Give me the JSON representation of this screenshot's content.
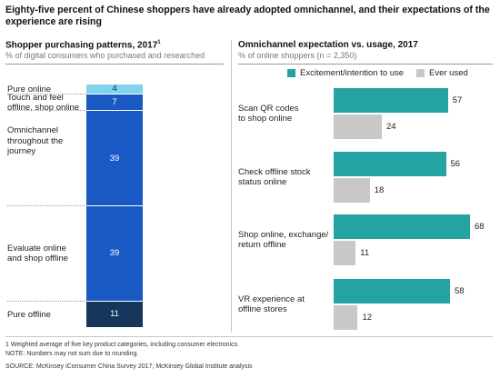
{
  "title": "Eighty-five percent of Chinese shoppers have already adopted omnichannel, and their expectations of the experience are rising",
  "left_panel": {
    "title": "Shopper purchasing patterns, 2017",
    "title_sup": "1",
    "subtitle": "% of digital consumers who purchased and researched"
  },
  "right_panel": {
    "title": "Omnichannel expectation vs. usage, 2017",
    "subtitle": "% of online shoppers (n = 2,350)"
  },
  "footnotes": {
    "note1": "1  Weighted average of five key product categories, including consumer electronics.",
    "note2": "NOTE: Numbers may not sum due to rounding.",
    "source": "SOURCE:  McKinsey iConsumer China Survey 2017; McKinsey Global Institute analysis"
  },
  "colors": {
    "pure_online": "#7fd3ec",
    "blue": "#1a59c4",
    "pure_offline": "#16365c",
    "teal": "#25a3a3",
    "gray": "#c8c8c8"
  },
  "chart_data": [
    {
      "type": "bar",
      "stacked": true,
      "title": "Shopper purchasing patterns, 2017",
      "subtitle": "% of digital consumers who purchased and researched",
      "categories": [
        "Pure online",
        "Touch and feel offline, shop online",
        "Omnichannel throughout the journey",
        "Evaluate online and shop offline",
        "Pure offline"
      ],
      "values": [
        4,
        7,
        39,
        39,
        11
      ],
      "segment_colors": [
        "#7fd3ec",
        "#1a59c4",
        "#1a59c4",
        "#1a59c4",
        "#16365c"
      ],
      "label_lines": [
        [
          "Pure online"
        ],
        [
          "Touch and feel",
          "offline, shop online"
        ],
        [
          "Omnichannel",
          "throughout the",
          "journey"
        ],
        [
          "Evaluate online",
          "and shop offline"
        ],
        [
          "Pure offline"
        ]
      ]
    },
    {
      "type": "bar",
      "orientation": "horizontal",
      "title": "Omnichannel expectation vs. usage, 2017",
      "subtitle": "% of online shoppers (n = 2,350)",
      "categories": [
        "Scan QR codes to shop online",
        "Check offline stock status online",
        "Shop online, exchange/ return offline",
        "VR experience at offline stores"
      ],
      "label_lines": [
        [
          "Scan QR codes",
          "to shop online"
        ],
        [
          "Check offline stock",
          "status online"
        ],
        [
          "Shop online, exchange/",
          "return offline"
        ],
        [
          "VR experience at",
          "offline stores"
        ]
      ],
      "series": [
        {
          "name": "Excitement/intention to use",
          "color": "#25a3a3",
          "values": [
            57,
            56,
            68,
            58
          ]
        },
        {
          "name": "Ever used",
          "color": "#c8c8c8",
          "values": [
            24,
            18,
            11,
            12
          ]
        }
      ],
      "legend_position": "top",
      "xlim": [
        0,
        70
      ]
    }
  ]
}
